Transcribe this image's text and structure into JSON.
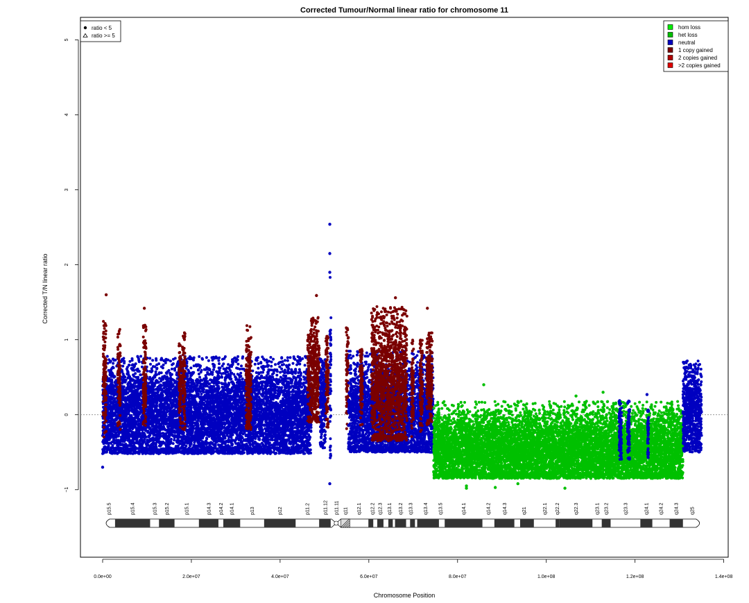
{
  "chart_data": {
    "type": "scatter",
    "title": "Corrected Tumour/Normal linear ratio for chromosome  11",
    "xlabel": "Chromosome Position",
    "ylabel": "Corrected T/N linear ratio",
    "xlim": [
      -5000000,
      141000000
    ],
    "ylim": [
      -1.9,
      5.3
    ],
    "x_ticks": [
      {
        "value": 0,
        "label": "0.0e+00"
      },
      {
        "value": 20000000,
        "label": "2.0e+07"
      },
      {
        "value": 40000000,
        "label": "4.0e+07"
      },
      {
        "value": 60000000,
        "label": "6.0e+07"
      },
      {
        "value": 80000000,
        "label": "8.0e+07"
      },
      {
        "value": 100000000,
        "label": "1.0e+08"
      },
      {
        "value": 120000000,
        "label": "1.2e+08"
      },
      {
        "value": 140000000,
        "label": "1.4e+08"
      }
    ],
    "y_ticks": [
      {
        "value": -1,
        "label": "−1"
      },
      {
        "value": 0,
        "label": "0"
      },
      {
        "value": 1,
        "label": "1"
      },
      {
        "value": 2,
        "label": "2"
      },
      {
        "value": 3,
        "label": "3"
      },
      {
        "value": 4,
        "label": "4"
      },
      {
        "value": 5,
        "label": "5"
      }
    ],
    "reference_line_y": 0,
    "grid": false,
    "shape_legend": {
      "placement": "top-left",
      "entries": [
        {
          "symbol": "circle",
          "label": "ratio < 5"
        },
        {
          "symbol": "triangle",
          "label": "ratio >= 5"
        }
      ]
    },
    "state_legend": {
      "placement": "top-right",
      "entries": [
        {
          "label": "hom loss",
          "color": "#00ee00"
        },
        {
          "label": "het loss",
          "color": "#00c000"
        },
        {
          "label": "neutral",
          "color": "#0000c0"
        },
        {
          "label": "1 copy gained",
          "color": "#7a0000"
        },
        {
          "label": "2 copies gained",
          "color": "#b00000"
        },
        {
          "label": ">2 copies gained",
          "color": "#e00000"
        }
      ]
    },
    "segments": [
      {
        "state": "neutral",
        "start": 0,
        "end": 47000000,
        "center": 0.0,
        "low": -0.52,
        "high": 0.78
      },
      {
        "state": "1 copy gained",
        "start": 100000,
        "end": 800000,
        "center": 0.45,
        "low": -0.3,
        "high": 1.25
      },
      {
        "state": "1 copy gained",
        "start": 3400000,
        "end": 4000000,
        "center": 0.45,
        "low": -0.2,
        "high": 1.15
      },
      {
        "state": "1 copy gained",
        "start": 9100000,
        "end": 9800000,
        "center": 0.5,
        "low": -0.15,
        "high": 1.2
      },
      {
        "state": "1 copy gained",
        "start": 17200000,
        "end": 17700000,
        "center": 0.4,
        "low": -0.2,
        "high": 0.95
      },
      {
        "state": "1 copy gained",
        "start": 18000000,
        "end": 18600000,
        "center": 0.45,
        "low": -0.2,
        "high": 1.1
      },
      {
        "state": "1 copy gained",
        "start": 32300000,
        "end": 33500000,
        "center": 0.4,
        "low": -0.2,
        "high": 1.2
      },
      {
        "state": "1 copy gained",
        "start": 46200000,
        "end": 48900000,
        "center": 0.55,
        "low": -0.1,
        "high": 1.3
      },
      {
        "state": "neutral",
        "start": 49000000,
        "end": 50300000,
        "center": 0.15,
        "low": -0.45,
        "high": 0.75
      },
      {
        "state": "1 copy gained",
        "start": 50300000,
        "end": 50900000,
        "center": 0.5,
        "low": -0.2,
        "high": 1.05
      },
      {
        "state": "neutral",
        "start": 51200000,
        "end": 51500000,
        "center": 0.3,
        "low": -0.6,
        "high": 1.9
      },
      {
        "state": "1 copy gained",
        "start": 54900000,
        "end": 55400000,
        "center": 0.45,
        "low": -0.2,
        "high": 1.2
      },
      {
        "state": "neutral",
        "start": 55400000,
        "end": 74500000,
        "center": 0.0,
        "low": -0.5,
        "high": 0.85
      },
      {
        "state": "1 copy gained",
        "start": 58000000,
        "end": 58600000,
        "center": 0.45,
        "low": -0.2,
        "high": 0.9
      },
      {
        "state": "1 copy gained",
        "start": 60600000,
        "end": 68600000,
        "center": 0.45,
        "low": -0.35,
        "high": 1.45
      },
      {
        "state": "1 copy gained",
        "start": 69600000,
        "end": 70100000,
        "center": 0.35,
        "low": -0.3,
        "high": 1.0
      },
      {
        "state": "1 copy gained",
        "start": 71500000,
        "end": 72100000,
        "center": 0.4,
        "low": -0.25,
        "high": 1.0
      },
      {
        "state": "1 copy gained",
        "start": 73000000,
        "end": 74300000,
        "center": 0.45,
        "low": -0.15,
        "high": 1.1
      },
      {
        "state": "het loss",
        "start": 74600000,
        "end": 130800000,
        "center": -0.47,
        "low": -0.85,
        "high": 0.18
      },
      {
        "state": "neutral",
        "start": 116400000,
        "end": 117000000,
        "center": -0.2,
        "low": -0.6,
        "high": 0.2
      },
      {
        "state": "neutral",
        "start": 118300000,
        "end": 118800000,
        "center": -0.2,
        "low": -0.6,
        "high": 0.2
      },
      {
        "state": "neutral",
        "start": 122800000,
        "end": 123100000,
        "center": -0.25,
        "low": -0.6,
        "high": 0.1
      },
      {
        "state": "neutral",
        "start": 130800000,
        "end": 135000000,
        "center": 0.05,
        "low": -0.5,
        "high": 0.72
      }
    ],
    "notable_points": [
      {
        "x": 800000,
        "y": 1.6,
        "state": "1 copy gained"
      },
      {
        "x": 9400000,
        "y": 1.42,
        "state": "1 copy gained"
      },
      {
        "x": 48200000,
        "y": 1.59,
        "state": "1 copy gained"
      },
      {
        "x": 51200000,
        "y": 2.54,
        "state": "neutral"
      },
      {
        "x": 51200000,
        "y": 2.15,
        "state": "neutral"
      },
      {
        "x": 51200000,
        "y": 1.9,
        "state": "neutral"
      },
      {
        "x": 51200000,
        "y": -0.92,
        "state": "neutral"
      },
      {
        "x": 66000000,
        "y": 1.56,
        "state": "1 copy gained"
      },
      {
        "x": 73200000,
        "y": 1.42,
        "state": "1 copy gained"
      },
      {
        "x": 0,
        "y": -0.7,
        "state": "neutral"
      },
      {
        "x": 85900000,
        "y": 0.4,
        "state": "het loss"
      },
      {
        "x": 82000000,
        "y": -0.95,
        "state": "het loss"
      },
      {
        "x": 82000000,
        "y": -0.98,
        "state": "het loss"
      },
      {
        "x": 88500000,
        "y": -0.97,
        "state": "het loss"
      },
      {
        "x": 93600000,
        "y": -0.92,
        "state": "het loss"
      },
      {
        "x": 104200000,
        "y": -0.98,
        "state": "het loss"
      },
      {
        "x": 112800000,
        "y": 0.3,
        "state": "het loss"
      },
      {
        "x": 122700000,
        "y": 0.27,
        "state": "neutral"
      },
      {
        "x": 106700000,
        "y": 0.25,
        "state": "het loss"
      }
    ],
    "ideogram": {
      "bands": [
        {
          "name": "p15.5",
          "start": 0,
          "end": 2800000,
          "stain": "gneg"
        },
        {
          "name": "p15.4",
          "start": 2800000,
          "end": 10700000,
          "stain": "gpos"
        },
        {
          "name": "p15.3",
          "start": 10700000,
          "end": 12700000,
          "stain": "gneg"
        },
        {
          "name": "p15.2",
          "start": 12700000,
          "end": 16200000,
          "stain": "gpos"
        },
        {
          "name": "p15.1",
          "start": 16200000,
          "end": 21700000,
          "stain": "gneg"
        },
        {
          "name": "p14.3",
          "start": 21700000,
          "end": 26100000,
          "stain": "gpos"
        },
        {
          "name": "p14.2",
          "start": 26100000,
          "end": 27200000,
          "stain": "gneg"
        },
        {
          "name": "p14.1",
          "start": 27200000,
          "end": 31000000,
          "stain": "gpos"
        },
        {
          "name": "p13",
          "start": 31000000,
          "end": 36400000,
          "stain": "gneg"
        },
        {
          "name": "p12",
          "start": 36400000,
          "end": 43500000,
          "stain": "gpos"
        },
        {
          "name": "p11.2",
          "start": 43500000,
          "end": 48800000,
          "stain": "gneg"
        },
        {
          "name": "p11.12",
          "start": 48800000,
          "end": 51600000,
          "stain": "gpos"
        },
        {
          "name": "p11.11",
          "start": 51600000,
          "end": 53700000,
          "stain": "acen"
        },
        {
          "name": "q11",
          "start": 53700000,
          "end": 55700000,
          "stain": "stalk"
        },
        {
          "name": "q12.1",
          "start": 55700000,
          "end": 59900000,
          "stain": "gneg"
        },
        {
          "name": "q12.2",
          "start": 59900000,
          "end": 61700000,
          "stain": "gpos"
        },
        {
          "name": "q12.3",
          "start": 61700000,
          "end": 63400000,
          "stain": "gneg"
        },
        {
          "name": "q13.1",
          "start": 63400000,
          "end": 65900000,
          "stain": "gpos"
        },
        {
          "name": "q13.2",
          "start": 65900000,
          "end": 68400000,
          "stain": "gneg"
        },
        {
          "name": "q13.3",
          "start": 68400000,
          "end": 70400000,
          "stain": "gpos"
        },
        {
          "name": "q13.4",
          "start": 70400000,
          "end": 75200000,
          "stain": "gneg"
        },
        {
          "name": "q13.5",
          "start": 75200000,
          "end": 77100000,
          "stain": "gpos"
        },
        {
          "name": "q14.1",
          "start": 77100000,
          "end": 85600000,
          "stain": "gneg"
        },
        {
          "name": "q14.2",
          "start": 85600000,
          "end": 88300000,
          "stain": "gpos"
        },
        {
          "name": "q14.3",
          "start": 88300000,
          "end": 92800000,
          "stain": "gneg"
        },
        {
          "name": "q21",
          "start": 92800000,
          "end": 97200000,
          "stain": "gpos"
        },
        {
          "name": "q22.1",
          "start": 97200000,
          "end": 102100000,
          "stain": "gneg"
        },
        {
          "name": "q22.2",
          "start": 102100000,
          "end": 102900000,
          "stain": "gpos"
        },
        {
          "name": "q22.3",
          "start": 102900000,
          "end": 110400000,
          "stain": "gneg"
        },
        {
          "name": "q23.1",
          "start": 110400000,
          "end": 112500000,
          "stain": "gpos"
        },
        {
          "name": "q23.2",
          "start": 112500000,
          "end": 114500000,
          "stain": "gneg"
        },
        {
          "name": "q23.3",
          "start": 114500000,
          "end": 121200000,
          "stain": "gpos"
        },
        {
          "name": "q24.1",
          "start": 121200000,
          "end": 123900000,
          "stain": "gneg"
        },
        {
          "name": "q24.2",
          "start": 123900000,
          "end": 127800000,
          "stain": "gpos"
        },
        {
          "name": "q24.3",
          "start": 127800000,
          "end": 130800000,
          "stain": "gneg"
        },
        {
          "name": "q25",
          "start": 130800000,
          "end": 135006516,
          "stain": "gpos"
        }
      ],
      "dark_blocks": [
        [
          2800000,
          10700000
        ],
        [
          12700000,
          16200000
        ],
        [
          21700000,
          26100000
        ],
        [
          27200000,
          31000000
        ],
        [
          36400000,
          43500000
        ],
        [
          48800000,
          51400000
        ],
        [
          59900000,
          61000000
        ],
        [
          61900000,
          63300000
        ],
        [
          64400000,
          65400000
        ],
        [
          65900000,
          68400000
        ],
        [
          69300000,
          70400000
        ],
        [
          70900000,
          75800000
        ],
        [
          77100000,
          85600000
        ],
        [
          88300000,
          92800000
        ],
        [
          94100000,
          97200000
        ],
        [
          102100000,
          102900000
        ],
        [
          102900000,
          110400000
        ],
        [
          112500000,
          114500000
        ],
        [
          121200000,
          123900000
        ],
        [
          127800000,
          130800000
        ]
      ]
    }
  }
}
